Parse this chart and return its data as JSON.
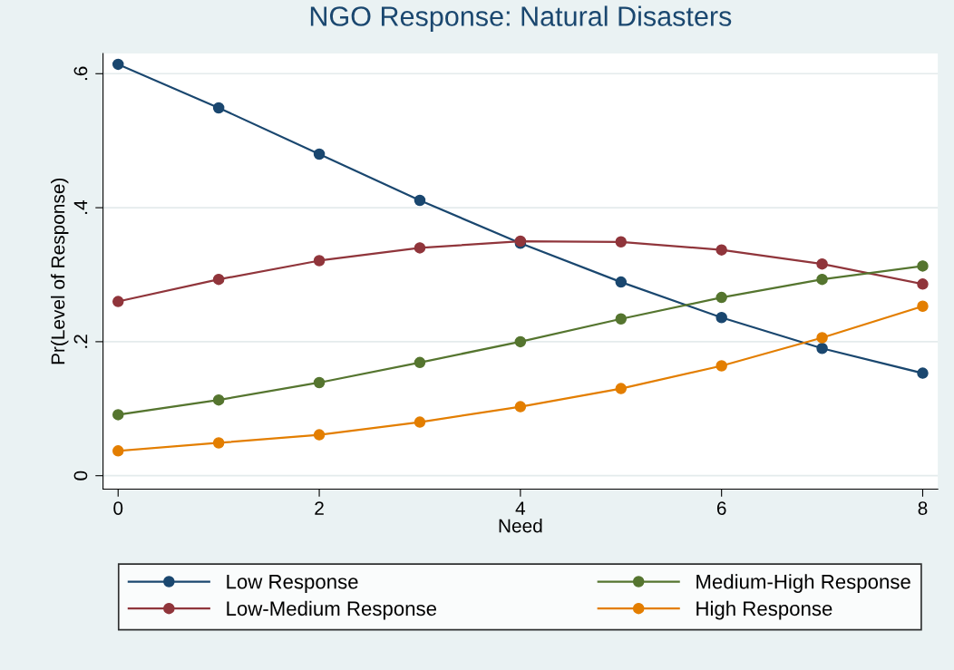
{
  "chart_data": {
    "type": "line",
    "title": "NGO Response: Natural Disasters",
    "xlabel": "Need",
    "ylabel": "Pr(Level of Response)",
    "x": [
      0,
      1,
      2,
      3,
      4,
      5,
      6,
      7,
      8
    ],
    "series": [
      {
        "name": "Low Response",
        "color": "#1a476f",
        "values": [
          0.614,
          0.549,
          0.48,
          0.411,
          0.347,
          0.289,
          0.236,
          0.19,
          0.153
        ]
      },
      {
        "name": "Low-Medium Response",
        "color": "#90353b",
        "values": [
          0.26,
          0.293,
          0.321,
          0.34,
          0.35,
          0.349,
          0.337,
          0.316,
          0.286
        ]
      },
      {
        "name": "Medium-High Response",
        "color": "#55752f",
        "values": [
          0.091,
          0.113,
          0.139,
          0.169,
          0.2,
          0.234,
          0.266,
          0.293,
          0.313
        ]
      },
      {
        "name": "High Response",
        "color": "#e37e00",
        "values": [
          0.037,
          0.049,
          0.061,
          0.08,
          0.103,
          0.13,
          0.164,
          0.206,
          0.253
        ]
      }
    ],
    "xlim": [
      -0.15,
      8.15
    ],
    "xticks": [
      0,
      2,
      4,
      6,
      8
    ],
    "ylim": [
      -0.02,
      0.63
    ],
    "yticks": [
      {
        "value": 0,
        "label": "0"
      },
      {
        "value": 0.2,
        "label": ".2"
      },
      {
        "value": 0.4,
        "label": ".4"
      },
      {
        "value": 0.6,
        "label": ".6"
      }
    ],
    "grid": "y",
    "legend": "bottom",
    "marker": "circle",
    "line_style": "solid"
  }
}
